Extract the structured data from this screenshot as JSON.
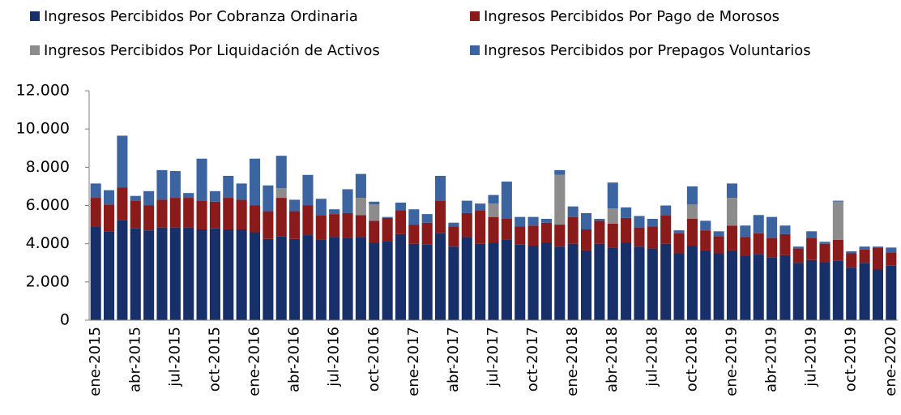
{
  "chart_data": {
    "type": "stacked-bar",
    "categories": [
      "ene-2015",
      null,
      null,
      "abr-2015",
      null,
      null,
      "jul-2015",
      null,
      null,
      "oct-2015",
      null,
      null,
      "ene-2016",
      null,
      null,
      "abr-2016",
      null,
      null,
      "jul-2016",
      null,
      null,
      "oct-2016",
      null,
      null,
      "ene-2017",
      null,
      null,
      "abr-2017",
      null,
      null,
      "jul-2017",
      null,
      null,
      "oct-2017",
      null,
      null,
      "ene-2018",
      null,
      null,
      "abr-2018",
      null,
      null,
      "jul-2018",
      null,
      null,
      "oct-2018",
      null,
      null,
      "ene-2019",
      null,
      null,
      "abr-2019",
      null,
      null,
      "jul-2019",
      null,
      null,
      "oct-2019",
      null,
      null,
      "ene-2020"
    ],
    "series": [
      {
        "name": "Ingresos Percibidos Por Cobranza Ordinaria",
        "color": "#17306a",
        "values": [
          4900,
          4650,
          5250,
          4800,
          4700,
          4850,
          4850,
          4850,
          4750,
          4800,
          4750,
          4750,
          4600,
          4250,
          4400,
          4250,
          4450,
          4200,
          4350,
          4300,
          4350,
          4050,
          4150,
          4500,
          4000,
          3950,
          4550,
          3850,
          4350,
          4000,
          4050,
          4200,
          3950,
          3900,
          4050,
          3850,
          4000,
          3650,
          4000,
          3800,
          4050,
          3850,
          3750,
          4000,
          3500,
          3900,
          3650,
          3500,
          3650,
          3350,
          3450,
          3300,
          3400,
          3000,
          3150,
          3050,
          3100,
          2750,
          3000,
          2650,
          2850
        ]
      },
      {
        "name": "Ingresos Percibidos Por Pago de Morosos",
        "color": "#8b1a1a",
        "values": [
          1500,
          1400,
          1700,
          1450,
          1300,
          1450,
          1550,
          1550,
          1500,
          1400,
          1650,
          1550,
          1400,
          1450,
          2000,
          1450,
          1550,
          1300,
          1200,
          1300,
          1150,
          1150,
          1200,
          1250,
          1000,
          1150,
          1700,
          1050,
          1250,
          1750,
          1350,
          1100,
          950,
          1050,
          1050,
          1150,
          1400,
          1100,
          1200,
          1250,
          1300,
          1000,
          1150,
          1500,
          1050,
          1400,
          1050,
          900,
          1300,
          1000,
          1100,
          1000,
          1100,
          750,
          1150,
          950,
          1100,
          750,
          700,
          1150,
          700
        ]
      },
      {
        "name": "Ingresos Percibidos Por Liquidación de Activos",
        "color": "#8c8c8c",
        "values": [
          0,
          0,
          0,
          0,
          0,
          0,
          0,
          0,
          0,
          0,
          0,
          0,
          0,
          0,
          500,
          0,
          0,
          0,
          0,
          0,
          900,
          850,
          0,
          0,
          0,
          0,
          0,
          0,
          0,
          0,
          700,
          0,
          0,
          0,
          0,
          2600,
          0,
          0,
          0,
          800,
          0,
          0,
          0,
          0,
          0,
          750,
          0,
          0,
          1450,
          0,
          0,
          0,
          0,
          0,
          0,
          0,
          2000,
          0,
          0,
          0,
          0
        ]
      },
      {
        "name": "Ingresos Percibidos por Prepagos Voluntarios",
        "color": "#3b64a0",
        "values": [
          750,
          750,
          2700,
          250,
          750,
          1550,
          1400,
          250,
          2200,
          550,
          1150,
          850,
          2450,
          1350,
          1700,
          600,
          1600,
          850,
          250,
          1250,
          1250,
          150,
          50,
          400,
          800,
          450,
          1300,
          200,
          650,
          350,
          450,
          1950,
          500,
          450,
          200,
          250,
          550,
          850,
          100,
          1350,
          550,
          600,
          400,
          500,
          150,
          950,
          500,
          250,
          750,
          600,
          950,
          1100,
          450,
          100,
          350,
          100,
          50,
          100,
          150,
          50,
          250
        ]
      }
    ],
    "ylim": [
      0,
      12000
    ],
    "yticks": [
      0,
      {
        "value": 2000,
        "label": "2.000"
      },
      {
        "value": 4000,
        "label": "4.000"
      },
      {
        "value": 6000,
        "label": "6.000"
      },
      {
        "value": 8000,
        "label": "8.000"
      },
      {
        "value": 10000,
        "label": "10.000"
      },
      {
        "value": 12000,
        "label": "12.000"
      }
    ]
  }
}
